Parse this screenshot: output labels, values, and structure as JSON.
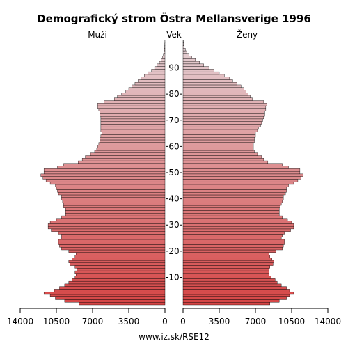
{
  "chart_data": {
    "type": "bar",
    "title": "Demografický strom Östra Mellansverige 1996",
    "left_label": "Muži",
    "center_label": "Vek",
    "right_label": "Ženy",
    "source": "www.iz.sk/RSE12",
    "xlim": [
      0,
      14000
    ],
    "x_ticks_left": [
      "14000",
      "10500",
      "7000",
      "3500",
      "0"
    ],
    "x_ticks_right": [
      "0",
      "3500",
      "7000",
      "10500",
      "14000"
    ],
    "age_ticks": [
      "10",
      "20",
      "30",
      "40",
      "50",
      "60",
      "70",
      "80",
      "90"
    ],
    "ages": [
      0,
      1,
      2,
      3,
      4,
      5,
      6,
      7,
      8,
      9,
      10,
      11,
      12,
      13,
      14,
      15,
      16,
      17,
      18,
      19,
      20,
      21,
      22,
      23,
      24,
      25,
      26,
      27,
      28,
      29,
      30,
      31,
      32,
      33,
      34,
      35,
      36,
      37,
      38,
      39,
      40,
      41,
      42,
      43,
      44,
      45,
      46,
      47,
      48,
      49,
      50,
      51,
      52,
      53,
      54,
      55,
      56,
      57,
      58,
      59,
      60,
      61,
      62,
      63,
      64,
      65,
      66,
      67,
      68,
      69,
      70,
      71,
      72,
      73,
      74,
      75,
      76,
      77,
      78,
      79,
      80,
      81,
      82,
      83,
      84,
      85,
      86,
      87,
      88,
      89,
      90,
      91,
      92,
      93,
      94,
      95,
      96,
      97,
      98,
      99,
      100
    ],
    "series": [
      {
        "name": "Muži",
        "values": [
          8300,
          9700,
          10600,
          11100,
          11700,
          10700,
          10200,
          9700,
          9300,
          9000,
          8700,
          8600,
          8700,
          8500,
          8700,
          9200,
          9300,
          9000,
          8700,
          8600,
          9300,
          10000,
          10200,
          10300,
          10300,
          10000,
          10000,
          10300,
          11000,
          11300,
          11300,
          11100,
          10500,
          10000,
          9600,
          9600,
          9600,
          9800,
          9800,
          9900,
          10000,
          10000,
          10300,
          10400,
          10500,
          10600,
          11100,
          11500,
          11800,
          12000,
          11700,
          11700,
          10400,
          9800,
          8400,
          8000,
          7700,
          7200,
          6800,
          6600,
          6500,
          6400,
          6300,
          6300,
          6200,
          6100,
          6200,
          6200,
          6200,
          6200,
          6200,
          6200,
          6300,
          6300,
          6400,
          6500,
          6500,
          5900,
          4900,
          4600,
          4200,
          3800,
          3500,
          3200,
          2900,
          2600,
          2300,
          2000,
          1650,
          1300,
          1000,
          760,
          540,
          370,
          240,
          160,
          100,
          60,
          35,
          20,
          10
        ]
      },
      {
        "name": "Ženy",
        "values": [
          8400,
          9300,
          10000,
          10300,
          10700,
          10300,
          10000,
          9500,
          9100,
          8900,
          8500,
          8300,
          8300,
          8300,
          8400,
          8700,
          8800,
          8600,
          8400,
          8300,
          9000,
          9600,
          9700,
          9800,
          9800,
          9500,
          9600,
          9800,
          10400,
          10700,
          10700,
          10500,
          10100,
          9600,
          9300,
          9300,
          9300,
          9400,
          9500,
          9600,
          9700,
          9700,
          9900,
          10000,
          10000,
          10200,
          10700,
          11100,
          11400,
          11600,
          11300,
          11300,
          10200,
          9600,
          8200,
          7800,
          7600,
          7200,
          6900,
          6800,
          6800,
          6800,
          6900,
          6900,
          7000,
          7000,
          7200,
          7300,
          7500,
          7600,
          7700,
          7800,
          7900,
          7900,
          8000,
          8000,
          8100,
          7800,
          6700,
          6500,
          6300,
          6100,
          5900,
          5600,
          5200,
          4800,
          4500,
          4000,
          3500,
          3000,
          2500,
          2000,
          1600,
          1200,
          850,
          560,
          360,
          220,
          120,
          60,
          25
        ]
      }
    ]
  }
}
